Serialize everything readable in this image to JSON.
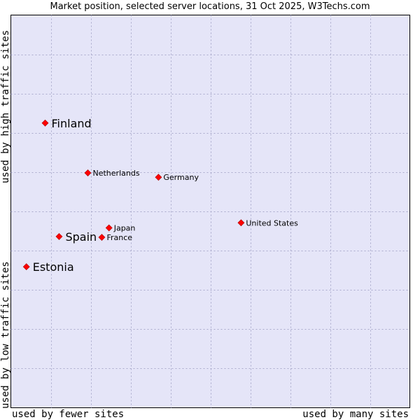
{
  "chart_data": {
    "type": "scatter",
    "title": "Market position, selected server locations, 31 Oct 2025, W3Techs.com",
    "xlabel_left": "used by fewer sites",
    "xlabel_right": "used by many sites",
    "ylabel_bottom": "used by low traffic sites",
    "ylabel_top": "used by high traffic sites",
    "xlim": [
      0,
      100
    ],
    "ylim": [
      0,
      100
    ],
    "grid": true,
    "points": [
      {
        "label": "Finland",
        "x": 8.6,
        "y": 72.5,
        "emphasis": true
      },
      {
        "label": "Netherlands",
        "x": 19.3,
        "y": 59.8,
        "emphasis": false
      },
      {
        "label": "Germany",
        "x": 37.0,
        "y": 58.7,
        "emphasis": false
      },
      {
        "label": "United States",
        "x": 57.7,
        "y": 47.1,
        "emphasis": false
      },
      {
        "label": "Japan",
        "x": 24.6,
        "y": 45.8,
        "emphasis": false
      },
      {
        "label": "Spain",
        "x": 12.1,
        "y": 43.6,
        "emphasis": true
      },
      {
        "label": "France",
        "x": 22.8,
        "y": 43.4,
        "emphasis": false
      },
      {
        "label": "Estonia",
        "x": 3.9,
        "y": 35.9,
        "emphasis": true
      }
    ]
  },
  "colors": {
    "plot_background": "#e5e5f8",
    "grid": "#aaaacc",
    "marker": "#ff0000"
  }
}
